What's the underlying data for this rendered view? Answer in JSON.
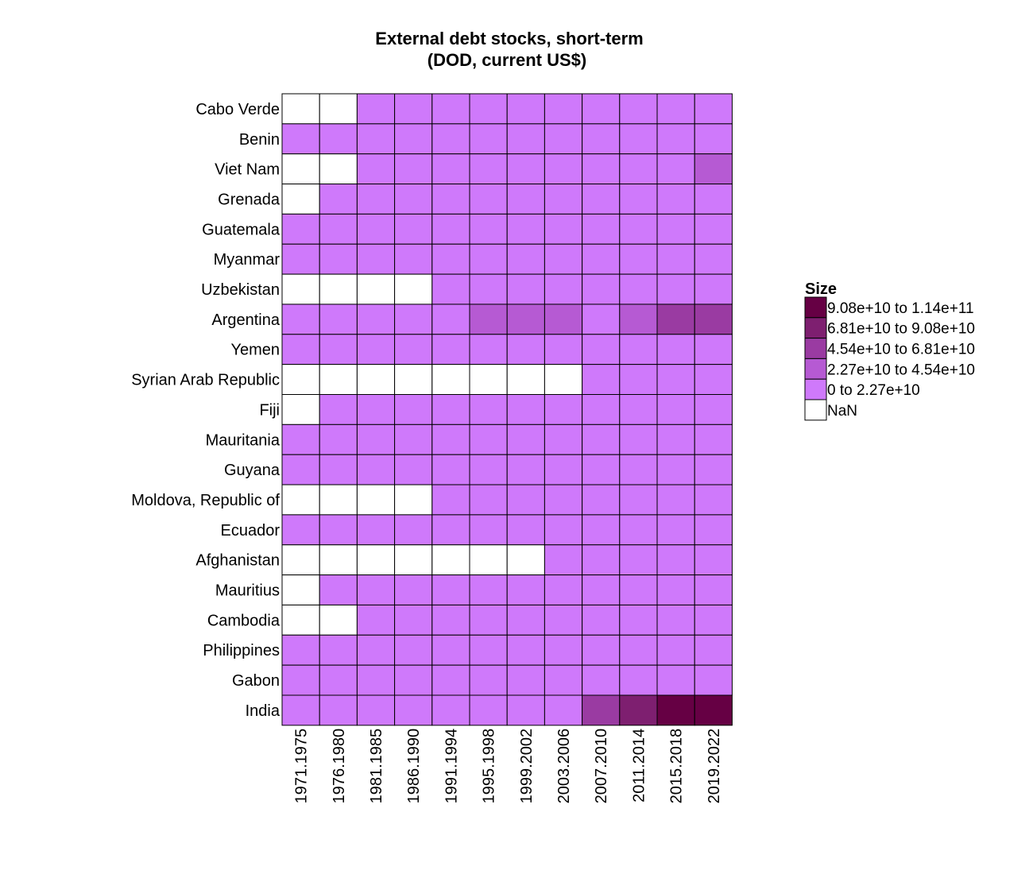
{
  "chart_data": {
    "type": "heatmap",
    "title": "External debt stocks, short-term",
    "subtitle": "(DOD, current US$)",
    "xlabel": "",
    "ylabel": "",
    "grid": true,
    "legend_position": "right",
    "x_categories": [
      "1971.1975",
      "1976.1980",
      "1981.1985",
      "1986.1990",
      "1991.1994",
      "1995.1998",
      "1999.2002",
      "2003.2006",
      "2007.2010",
      "2011.2014",
      "2015.2018",
      "2019.2022"
    ],
    "y_categories": [
      "Cabo Verde",
      "Benin",
      "Viet Nam",
      "Grenada",
      "Guatemala",
      "Myanmar",
      "Uzbekistan",
      "Argentina",
      "Yemen",
      "Syrian Arab Republic",
      "Fiji",
      "Mauritania",
      "Guyana",
      "Moldova, Republic of",
      "Ecuador",
      "Afghanistan",
      "Mauritius",
      "Cambodia",
      "Philippines",
      "Gabon",
      "India"
    ],
    "legend": {
      "title": "Size",
      "entries": [
        {
          "label": "9.08e+10 to 1.14e+11",
          "color": "#660044"
        },
        {
          "label": "6.81e+10 to 9.08e+10",
          "color": "#7e1f70"
        },
        {
          "label": "4.54e+10 to 6.81e+10",
          "color": "#9a3ba2"
        },
        {
          "label": "2.27e+10 to 4.54e+10",
          "color": "#b65ad3"
        },
        {
          "label": "0 to 2.27e+10",
          "color": "#cf79fb"
        },
        {
          "label": "NaN",
          "color": "#ffffff"
        }
      ]
    },
    "bin_values": [
      [
        -1,
        -1,
        0,
        0,
        0,
        0,
        0,
        0,
        0,
        0,
        0,
        0
      ],
      [
        0,
        0,
        0,
        0,
        0,
        0,
        0,
        0,
        0,
        0,
        0,
        0
      ],
      [
        -1,
        -1,
        0,
        0,
        0,
        0,
        0,
        0,
        0,
        0,
        0,
        1
      ],
      [
        -1,
        0,
        0,
        0,
        0,
        0,
        0,
        0,
        0,
        0,
        0,
        0
      ],
      [
        0,
        0,
        0,
        0,
        0,
        0,
        0,
        0,
        0,
        0,
        0,
        0
      ],
      [
        0,
        0,
        0,
        0,
        0,
        0,
        0,
        0,
        0,
        0,
        0,
        0
      ],
      [
        -1,
        -1,
        -1,
        -1,
        0,
        0,
        0,
        0,
        0,
        0,
        0,
        0
      ],
      [
        0,
        0,
        0,
        0,
        0,
        1,
        1,
        1,
        0,
        1,
        2,
        2
      ],
      [
        0,
        0,
        0,
        0,
        0,
        0,
        0,
        0,
        0,
        0,
        0,
        0
      ],
      [
        -1,
        -1,
        -1,
        -1,
        -1,
        -1,
        -1,
        -1,
        0,
        0,
        0,
        0
      ],
      [
        -1,
        0,
        0,
        0,
        0,
        0,
        0,
        0,
        0,
        0,
        0,
        0
      ],
      [
        0,
        0,
        0,
        0,
        0,
        0,
        0,
        0,
        0,
        0,
        0,
        0
      ],
      [
        0,
        0,
        0,
        0,
        0,
        0,
        0,
        0,
        0,
        0,
        0,
        0
      ],
      [
        -1,
        -1,
        -1,
        -1,
        0,
        0,
        0,
        0,
        0,
        0,
        0,
        0
      ],
      [
        0,
        0,
        0,
        0,
        0,
        0,
        0,
        0,
        0,
        0,
        0,
        0
      ],
      [
        -1,
        -1,
        -1,
        -1,
        -1,
        -1,
        -1,
        0,
        0,
        0,
        0,
        0
      ],
      [
        -1,
        0,
        0,
        0,
        0,
        0,
        0,
        0,
        0,
        0,
        0,
        0
      ],
      [
        -1,
        -1,
        0,
        0,
        0,
        0,
        0,
        0,
        0,
        0,
        0,
        0
      ],
      [
        0,
        0,
        0,
        0,
        0,
        0,
        0,
        0,
        0,
        0,
        0,
        0
      ],
      [
        0,
        0,
        0,
        0,
        0,
        0,
        0,
        0,
        0,
        0,
        0,
        0
      ],
      [
        0,
        0,
        0,
        0,
        0,
        0,
        0,
        0,
        2,
        3,
        4,
        4
      ]
    ],
    "bin_colors": [
      "#cf79fb",
      "#b65ad3",
      "#9a3ba2",
      "#7e1f70",
      "#660044"
    ],
    "nan_color": "#ffffff"
  }
}
